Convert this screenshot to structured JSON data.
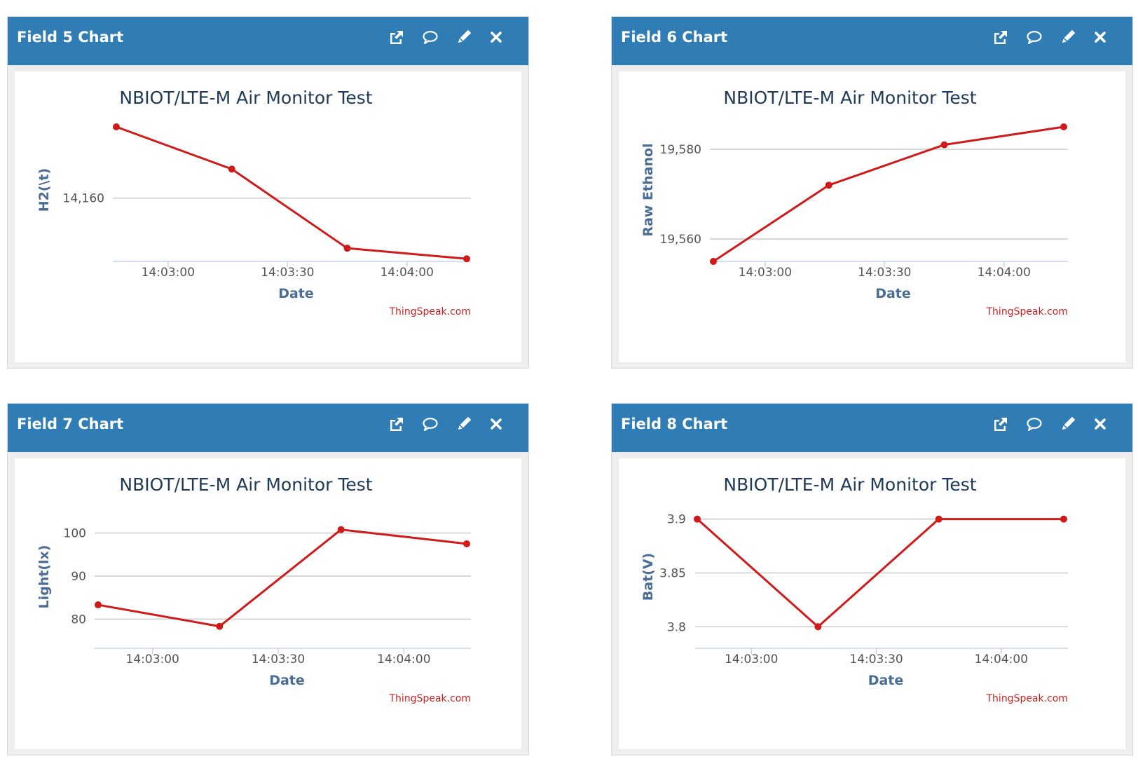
{
  "widgets": [
    {
      "title": "Field 5 Chart",
      "chart_data": {
        "type": "line",
        "title": "NBIOT/LTE-M Air Monitor Test",
        "xlabel": "Date",
        "ylabel": "H2(\\t)",
        "x_ticks": [
          "14:03:00",
          "14:03:30",
          "14:04:00"
        ],
        "y_ticks": [
          14160
        ],
        "y_tick_labels": [
          "14,160"
        ],
        "credit": "ThingSpeak.com",
        "series": [
          {
            "x": [
              "14:02:47",
              "14:03:16",
              "14:03:45",
              "14:04:15"
            ],
            "y": [
              14187,
              14171,
              14141,
              14137
            ]
          }
        ]
      }
    },
    {
      "title": "Field 6 Chart",
      "chart_data": {
        "type": "line",
        "title": "NBIOT/LTE-M Air Monitor Test",
        "xlabel": "Date",
        "ylabel": "Raw Ethanol",
        "x_ticks": [
          "14:03:00",
          "14:03:30",
          "14:04:00"
        ],
        "y_ticks": [
          19560,
          19580
        ],
        "y_tick_labels": [
          "19,560",
          "19,580"
        ],
        "credit": "ThingSpeak.com",
        "series": [
          {
            "x": [
              "14:02:47",
              "14:03:16",
              "14:03:45",
              "14:04:15"
            ],
            "y": [
              19555,
              19572,
              19581,
              19585
            ]
          }
        ]
      }
    },
    {
      "title": "Field 7 Chart",
      "chart_data": {
        "type": "line",
        "title": "NBIOT/LTE-M Air Monitor Test",
        "xlabel": "Date",
        "ylabel": "Light(lx)",
        "x_ticks": [
          "14:03:00",
          "14:03:30",
          "14:04:00"
        ],
        "y_ticks": [
          80,
          90,
          100
        ],
        "y_tick_labels": [
          "80",
          "90",
          "100"
        ],
        "credit": "ThingSpeak.com",
        "series": [
          {
            "x": [
              "14:02:47",
              "14:03:16",
              "14:03:45",
              "14:04:15"
            ],
            "y": [
              83.3,
              78.3,
              100.8,
              97.5
            ]
          }
        ]
      }
    },
    {
      "title": "Field 8 Chart",
      "chart_data": {
        "type": "line",
        "title": "NBIOT/LTE-M Air Monitor Test",
        "xlabel": "Date",
        "ylabel": "Bat(V)",
        "x_ticks": [
          "14:03:00",
          "14:03:30",
          "14:04:00"
        ],
        "y_ticks": [
          3.8,
          3.85,
          3.9
        ],
        "y_tick_labels": [
          "3.8",
          "3.85",
          "3.9"
        ],
        "credit": "ThingSpeak.com",
        "series": [
          {
            "x": [
              "14:02:47",
              "14:03:16",
              "14:03:45",
              "14:04:15"
            ],
            "y": [
              3.9,
              3.8,
              3.9,
              3.9
            ]
          }
        ]
      }
    }
  ],
  "toolbar": {
    "icons": [
      "external-link-icon",
      "comment-icon",
      "pencil-icon",
      "close-icon"
    ]
  },
  "colors": {
    "header": "#2f7db4",
    "series": "#d01a1a",
    "credit": "#cc1f1f",
    "axis_title": "#4a6d95"
  }
}
